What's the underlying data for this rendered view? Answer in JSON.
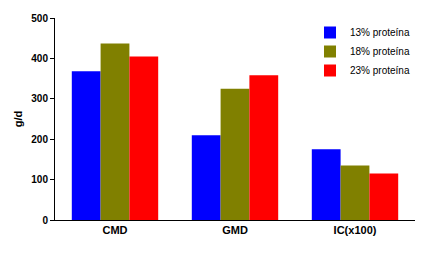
{
  "chart_data": {
    "type": "bar",
    "y_label": "g/d",
    "categories": [
      "CMD",
      "GMD",
      "IC(x100)"
    ],
    "series": [
      {
        "name": "13% proteína",
        "color": "#0000ff",
        "values": [
          368,
          210,
          175
        ]
      },
      {
        "name": "18% proteína",
        "color": "#808000",
        "values": [
          437,
          325,
          135
        ]
      },
      {
        "name": "23% proteína",
        "color": "#ff0000",
        "values": [
          405,
          358,
          115
        ]
      }
    ],
    "ylim": [
      0,
      500
    ],
    "yticks": [
      0,
      100,
      200,
      300,
      400,
      500
    ],
    "grid": false,
    "legend": "upper right"
  }
}
